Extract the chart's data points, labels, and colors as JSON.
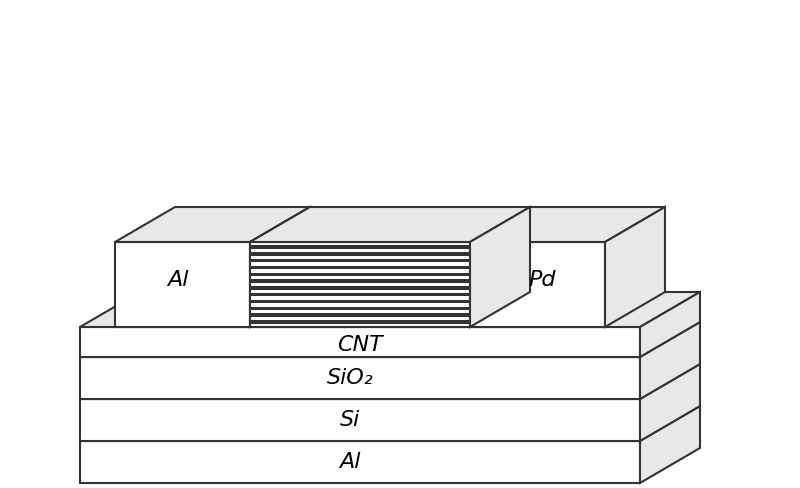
{
  "bg_color": "#ffffff",
  "line_color": "#333333",
  "fill_color_light": "#e8e8e8",
  "fill_color_white": "#ffffff",
  "fill_color_dark": "#aaaaaa",
  "fill_color_stripe": "#222222",
  "labels": {
    "Al_left": "Al",
    "Pd_right": "Pd",
    "CNT": "CNT",
    "SiO2": "SiO₂",
    "Si": "Si",
    "Al_bottom": "Al"
  },
  "font_size": 16,
  "lw": 1.5
}
